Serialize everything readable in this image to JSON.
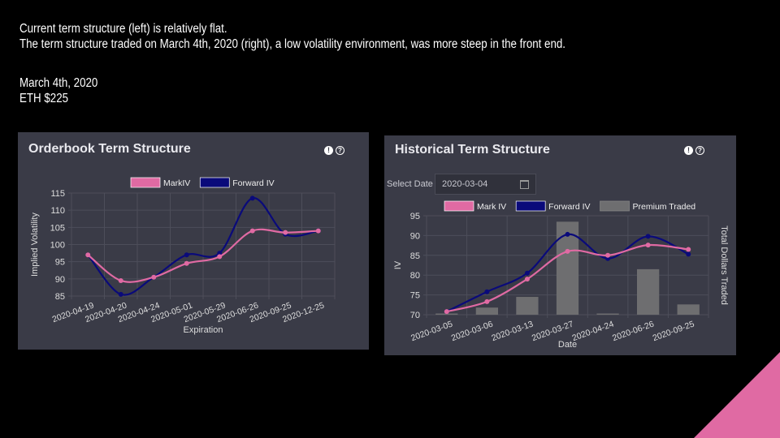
{
  "slide": {
    "line1": "Current term structure (left) is relatively flat.",
    "line2": "The term structure traded on March 4th, 2020 (right), a low volatility environment, was more steep in the front end.",
    "line3": "March 4th, 2020",
    "line4": "ETH $225",
    "accent_color": "#e06aa3"
  },
  "left_panel": {
    "title": "Orderbook Term Structure",
    "icons": [
      "exclamation-icon",
      "help-icon"
    ]
  },
  "right_panel": {
    "title": "Historical Term Structure",
    "select_date_label": "Select Date",
    "select_date_value": "2020-03-04",
    "icons": [
      "exclamation-icon",
      "help-icon",
      "calendar-icon"
    ]
  },
  "chart_data": [
    {
      "type": "line",
      "title": "Orderbook Term Structure",
      "xlabel": "Expiration",
      "ylabel": "Implied Volatility",
      "categories": [
        "2020-04-19",
        "2020-04-20",
        "2020-04-24",
        "2020-05-01",
        "2020-05-29",
        "2020-06-26",
        "2020-09-25",
        "2020-12-25"
      ],
      "series": [
        {
          "name": "MarkIV",
          "color": "#e06aa3",
          "values": [
            97,
            89.5,
            90.5,
            94.5,
            96.5,
            104,
            103.5,
            104
          ]
        },
        {
          "name": "Forward IV",
          "color": "#0a0a7a",
          "values": [
            97,
            85.5,
            90.5,
            97,
            97.5,
            113.5,
            103,
            104
          ]
        }
      ],
      "ylim": [
        85,
        115
      ],
      "yticks": [
        85,
        90,
        95,
        100,
        105,
        110,
        115
      ],
      "legend": "top-center",
      "grid": true
    },
    {
      "type": "line",
      "title": "Historical Term Structure",
      "xlabel": "Date",
      "ylabel": "IV",
      "y2label": "Total Dollars Traded",
      "categories": [
        "2020-03-05",
        "2020-03-06",
        "2020-03-13",
        "2020-03-27",
        "2020-04-24",
        "2020-06-26",
        "2020-09-25"
      ],
      "series": [
        {
          "name": "Mark IV",
          "color": "#e06aa3",
          "values": [
            70.8,
            73.3,
            79,
            86,
            85,
            87.6,
            86.5
          ]
        },
        {
          "name": "Forward IV",
          "color": "#0a0a7a",
          "values": [
            70.8,
            75.8,
            80.5,
            90.3,
            84.2,
            89.8,
            85.3
          ]
        },
        {
          "name": "Premium Traded",
          "color": "#6e6e70",
          "kind": "bar",
          "values": [
            0.3,
            1.8,
            4.5,
            23.5,
            0.3,
            11.5,
            2.6
          ]
        }
      ],
      "ylim": [
        70,
        95
      ],
      "yticks": [
        70,
        75,
        80,
        85,
        90,
        95
      ],
      "bar_max": 25,
      "legend": "top-center",
      "grid": true
    }
  ]
}
